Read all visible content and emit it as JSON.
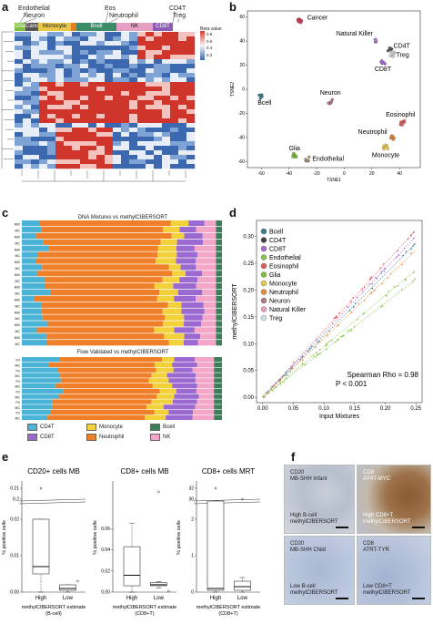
{
  "panels": {
    "a": "a",
    "b": "b",
    "c": "c",
    "d": "d",
    "e": "e",
    "f": "f"
  },
  "panel_a": {
    "top_labels": {
      "endothelial": "Endothelial",
      "neuron": "Neuron",
      "eos": "Eos",
      "neutrophil": "Neutrophil",
      "cd4t": "CD4T",
      "treg": "Treg"
    },
    "bar_labels": [
      {
        "label": "Glia",
        "color": "#7fbf3f"
      },
      {
        "label": "Cancer",
        "color": "#555555"
      },
      {
        "label": "Monocyte",
        "color": "#e8c84a"
      },
      {
        "label": "",
        "color": "#e67e22"
      },
      {
        "label": "Bcell",
        "color": "#3c8c6a"
      },
      {
        "label": "NK",
        "color": "#e6a0c4"
      },
      {
        "label": "CD8T",
        "color": "#8e5cb5"
      }
    ],
    "colorbar_title": "Beta value",
    "colorbar_ticks": [
      "0.8",
      "0.6",
      "0.4",
      "0.2"
    ]
  },
  "panel_b": {
    "chart_data": {
      "type": "scatter",
      "xlabel": "TSNE1",
      "ylabel": "TSNE2",
      "xlim": [
        -70,
        55
      ],
      "ylim": [
        -65,
        65
      ],
      "xticks": [
        -60,
        -40,
        -20,
        0,
        20,
        40
      ],
      "yticks": [
        -60,
        -40,
        -20,
        0,
        20,
        40,
        60
      ],
      "clusters": [
        {
          "name": "Cancer",
          "x": -32,
          "y": 57,
          "color": "#d33a56"
        },
        {
          "name": "Natural Killer",
          "x": 22,
          "y": 40,
          "color": "#b58ad6"
        },
        {
          "name": "CD4T",
          "x": 33,
          "y": 33,
          "color": "#555555"
        },
        {
          "name": "Treg",
          "x": 35,
          "y": 29,
          "color": "#d0d0d0"
        },
        {
          "name": "CD8T",
          "x": 28,
          "y": 22,
          "color": "#a86bd1"
        },
        {
          "name": "Bcell",
          "x": -60,
          "y": -6,
          "color": "#3c7f8c"
        },
        {
          "name": "Neuron",
          "x": -10,
          "y": -10,
          "color": "#b07a82"
        },
        {
          "name": "Eosinophil",
          "x": 42,
          "y": -28,
          "color": "#e05b5b"
        },
        {
          "name": "Neutrophil",
          "x": 35,
          "y": -40,
          "color": "#e68a3a"
        },
        {
          "name": "Monocyte",
          "x": 30,
          "y": -48,
          "color": "#e8c84a"
        },
        {
          "name": "Glia",
          "x": -36,
          "y": -55,
          "color": "#7fbf3f"
        },
        {
          "name": "Endothelial",
          "x": -27,
          "y": -58,
          "color": "#a89578"
        }
      ]
    }
  },
  "panel_c": {
    "title_top": "DNA Mixtures vs methylCIBERSORT",
    "title_bottom": "Flow Validated vs methylCIBERSORT",
    "row_labels_top": [
      "MIX",
      "MC",
      "MIX",
      "MC",
      "MIX",
      "MC",
      "MIX",
      "MC",
      "MIX",
      "MC",
      "MIX",
      "MC",
      "MIX",
      "MC",
      "MIX",
      "MC",
      "MIX",
      "MC",
      "MIX",
      "MC"
    ],
    "row_labels_bottom": [
      "FV",
      "MC",
      "FV",
      "MC",
      "FV",
      "MC",
      "FV",
      "MC",
      "FV",
      "MC",
      "FV",
      "MC"
    ],
    "legend": [
      {
        "label": "CD4T",
        "color": "#4ab3d6"
      },
      {
        "label": "Monocyte",
        "color": "#f2d13a"
      },
      {
        "label": "Bcell",
        "color": "#3c7f5a"
      },
      {
        "label": "CD8T",
        "color": "#9b6ad0"
      },
      {
        "label": "Neutrophil",
        "color": "#f07f2a"
      },
      {
        "label": "NK",
        "color": "#f3a6c8"
      }
    ]
  },
  "panel_d": {
    "chart_data": {
      "type": "scatter",
      "xlabel": "Input Mixtures",
      "ylabel": "methylCIBERSORT",
      "xlim": [
        -0.01,
        0.26
      ],
      "ylim": [
        -0.01,
        0.33
      ],
      "xticks": [
        "0.00",
        "0.05",
        "0.10",
        "0.15",
        "0.20",
        "0.25"
      ],
      "yticks": [
        "0.00",
        "0.05",
        "0.10",
        "0.15",
        "0.20",
        "0.25",
        "0.30"
      ],
      "legend": [
        {
          "name": "Bcell",
          "color": "#3c7f8c"
        },
        {
          "name": "CD4T",
          "color": "#444444"
        },
        {
          "name": "CD8T",
          "color": "#a86bd1"
        },
        {
          "name": "Endothelial",
          "color": "#8fbf4f"
        },
        {
          "name": "Eosinophil",
          "color": "#e05b5b"
        },
        {
          "name": "Glia",
          "color": "#7fbf3f"
        },
        {
          "name": "Monocyte",
          "color": "#e8c84a"
        },
        {
          "name": "Neutrophil",
          "color": "#e68a3a"
        },
        {
          "name": "Neuron",
          "color": "#b07a82"
        },
        {
          "name": "Natural Killer",
          "color": "#e6a0c4"
        },
        {
          "name": "Treg",
          "color": "#cfe0e8"
        }
      ],
      "lines": [
        {
          "slope": 1.25,
          "color": "#e05b5b"
        },
        {
          "slope": 1.2,
          "color": "#a86bd1"
        },
        {
          "slope": 1.15,
          "color": "#3c7f8c"
        },
        {
          "slope": 1.1,
          "color": "#e68a3a"
        },
        {
          "slope": 0.95,
          "color": "#8fbf4f"
        },
        {
          "slope": 0.88,
          "color": "#7fbf3f"
        }
      ],
      "annotation_1": "Spearman Rho = 0.98",
      "annotation_2": "P < 0.001"
    }
  },
  "panel_e": {
    "plots": [
      {
        "title": "CD20+ cells MB",
        "ylabel": "% positive cells",
        "xlabel_1": "methylCIBERSORT estimate",
        "xlabel_2": "(B-cell)",
        "categories": [
          "High",
          "Low"
        ],
        "yticks_upper": [
          "0.21",
          "0.2"
        ],
        "yticks_lower": [
          "0.00",
          "0.01",
          "0.02"
        ],
        "boxes": [
          {
            "q1": 0.005,
            "median": 0.007,
            "q3": 0.02,
            "whisker_lo": 0.0,
            "whisker_hi": 0.02,
            "outlier_high": 0.21
          },
          {
            "q1": 0.0005,
            "median": 0.001,
            "q3": 0.002,
            "whisker_lo": 0.0,
            "whisker_hi": 0.002,
            "outlier": 0.003
          }
        ]
      },
      {
        "title": "CD8+ cells MB",
        "ylabel": "% positive cells",
        "xlabel_1": "methylCIBERSORT estimate",
        "xlabel_2": "(CD8+T)",
        "categories": [
          "High",
          "Low"
        ],
        "yticks": [
          "0.00",
          "0.02",
          "0.04",
          "0.06"
        ],
        "boxes": [
          {
            "q1": 0.006,
            "median": 0.016,
            "q3": 0.043,
            "whisker_lo": 0.0,
            "whisker_hi": 0.065
          },
          {
            "q1": 0.006,
            "median": 0.007,
            "q3": 0.009,
            "whisker_lo": 0.004,
            "whisker_hi": 0.01,
            "outlier": 0.001,
            "outlier_high": 0.095
          }
        ]
      },
      {
        "title": "CD8+ cells MRT",
        "ylabel": "% positive cells",
        "xlabel_1": "methylCIBERSORT estimate",
        "xlabel_2": "(CD8+T)",
        "categories": [
          "High",
          "Low"
        ],
        "yticks_upper": [
          "32",
          "30"
        ],
        "yticks_lower": [
          "0",
          "1",
          "2"
        ],
        "boxes": [
          {
            "q1": 0.05,
            "median": 0.1,
            "q3": 2.5,
            "whisker_lo": 0.0,
            "whisker_hi": 2.5,
            "outlier_high": 32
          },
          {
            "q1": 0.05,
            "median": 0.15,
            "q3": 0.3,
            "whisker_lo": 0.0,
            "whisker_hi": 0.4,
            "outlier_high": 30
          }
        ]
      }
    ]
  },
  "panel_f": {
    "images": [
      {
        "top_1": "CD20",
        "top_2": "MB-SHH Infant",
        "bot_1": "High B-cell",
        "bot_2": "methylCIBERSORT",
        "stain": "light"
      },
      {
        "top_1": "CD8",
        "top_2": "ATRT-MYC",
        "bot_1": "High CD8+T",
        "bot_2": "methylCIBERSORT",
        "stain": "dark"
      },
      {
        "top_1": "CD20",
        "top_2": "MB-SHH Child",
        "bot_1": "Low B-cell",
        "bot_2": "methylCIBERSORT",
        "stain": "blue"
      },
      {
        "top_1": "CD8",
        "top_2": "ATRT-TYR",
        "bot_1": "Low CD8+T",
        "bot_2": "methylCIBERSORT",
        "stain": "blue"
      }
    ]
  }
}
